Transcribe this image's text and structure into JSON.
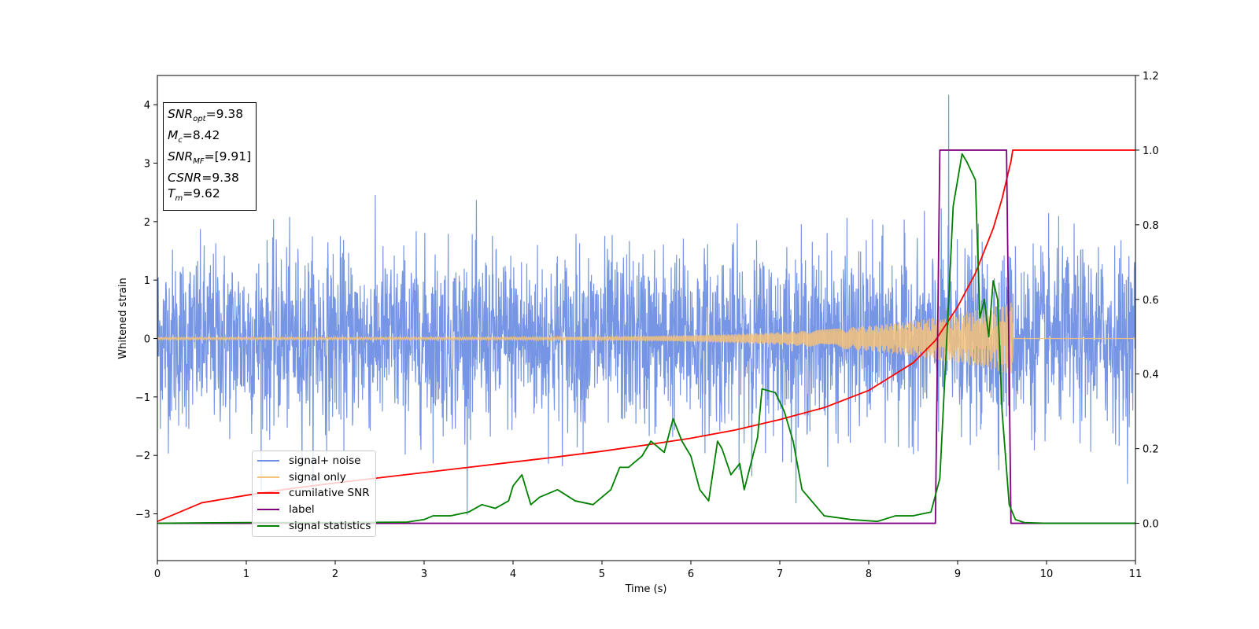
{
  "info_box": {
    "lines": [
      {
        "name": "SNR",
        "sub": "opt",
        "value": "=9.38"
      },
      {
        "name": "M",
        "sub": "c",
        "value": "=8.42"
      },
      {
        "name": "SNR",
        "sub": "MF",
        "value": "=[9.91]"
      },
      {
        "name": "CSNR",
        "sub": "",
        "value": "=9.38"
      },
      {
        "name": "T",
        "sub": "m",
        "value": "=9.62"
      }
    ]
  },
  "chart_data": {
    "type": "line",
    "xlabel": "Time (s)",
    "ylabel": "Whitened strain",
    "y2label": "",
    "xlim": [
      0,
      11
    ],
    "ylim": [
      -3.8,
      4.5
    ],
    "y2lim": [
      -0.1,
      1.2
    ],
    "x_ticks": [
      0,
      1,
      2,
      3,
      4,
      5,
      6,
      7,
      8,
      9,
      10,
      11
    ],
    "y_ticks": [
      -3,
      -2,
      -1,
      0,
      1,
      2,
      3,
      4
    ],
    "y2_ticks": [
      0.0,
      0.2,
      0.4,
      0.6,
      0.8,
      1.0,
      1.2
    ],
    "legend_position": "lower-left",
    "grid": false,
    "noise_amplitude_typical": 0.75,
    "noise_peak_time": 8.9,
    "noise_peak_value": 4.17,
    "chirp_amplitude_start": 0.02,
    "chirp_amplitude_end": 0.62,
    "merger_time": 9.62,
    "series": [
      {
        "name": "signal+ noise",
        "color": "#6f8fe4",
        "axis": "left"
      },
      {
        "name": "signal only",
        "color": "#f5c27a",
        "axis": "left"
      },
      {
        "name": "cumilative SNR",
        "color": "#ff0000",
        "axis": "right",
        "x": [
          0,
          0.5,
          1,
          1.5,
          2,
          2.5,
          3,
          3.5,
          4,
          4.5,
          5,
          5.5,
          6,
          6.5,
          7,
          7.5,
          8,
          8.5,
          8.75,
          9,
          9.2,
          9.4,
          9.5,
          9.55,
          9.6,
          9.62,
          9.63,
          11
        ],
        "values": [
          0.005,
          0.055,
          0.075,
          0.093,
          0.108,
          0.122,
          0.136,
          0.15,
          0.164,
          0.178,
          0.193,
          0.21,
          0.228,
          0.25,
          0.278,
          0.31,
          0.356,
          0.43,
          0.49,
          0.58,
          0.67,
          0.79,
          0.87,
          0.92,
          0.97,
          1.0,
          1.0,
          1.0
        ]
      },
      {
        "name": "label",
        "color": "#800080",
        "axis": "right",
        "x": [
          0,
          8.75,
          8.8,
          9.55,
          9.6,
          11
        ],
        "values": [
          0,
          0,
          1,
          1,
          0,
          0
        ]
      },
      {
        "name": "signal statistics",
        "color": "#008000",
        "axis": "right",
        "x": [
          0,
          1,
          2,
          2.8,
          3.0,
          3.1,
          3.3,
          3.5,
          3.65,
          3.8,
          3.95,
          4.0,
          4.1,
          4.2,
          4.3,
          4.5,
          4.7,
          4.9,
          5.0,
          5.1,
          5.2,
          5.3,
          5.45,
          5.55,
          5.7,
          5.8,
          5.9,
          6.0,
          6.1,
          6.2,
          6.3,
          6.35,
          6.45,
          6.55,
          6.6,
          6.75,
          6.8,
          6.95,
          7.05,
          7.15,
          7.25,
          7.5,
          7.8,
          8.1,
          8.3,
          8.5,
          8.7,
          8.8,
          8.9,
          8.95,
          9.05,
          9.1,
          9.2,
          9.25,
          9.3,
          9.35,
          9.4,
          9.45,
          9.5,
          9.58,
          9.65,
          9.75,
          10,
          11
        ],
        "values": [
          0,
          0.002,
          0.002,
          0.003,
          0.01,
          0.02,
          0.02,
          0.03,
          0.05,
          0.04,
          0.06,
          0.1,
          0.13,
          0.05,
          0.07,
          0.09,
          0.06,
          0.05,
          0.07,
          0.09,
          0.15,
          0.15,
          0.18,
          0.22,
          0.19,
          0.28,
          0.22,
          0.18,
          0.09,
          0.06,
          0.22,
          0.2,
          0.13,
          0.16,
          0.09,
          0.23,
          0.36,
          0.35,
          0.3,
          0.22,
          0.09,
          0.02,
          0.01,
          0.005,
          0.02,
          0.02,
          0.03,
          0.12,
          0.6,
          0.85,
          0.99,
          0.97,
          0.92,
          0.55,
          0.6,
          0.5,
          0.65,
          0.6,
          0.3,
          0.05,
          0.01,
          0.002,
          0,
          0
        ]
      }
    ]
  }
}
